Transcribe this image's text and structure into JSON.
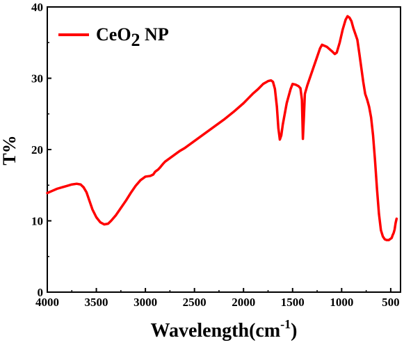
{
  "chart_data": {
    "type": "line",
    "title": "",
    "xlabel": {
      "main": "Wavelength(cm",
      "sup": "-1",
      "close": ")"
    },
    "ylabel": "T%",
    "xlim": [
      4000,
      400
    ],
    "ylim": [
      0,
      40
    ],
    "x_reversed": true,
    "x_ticks": [
      4000,
      3500,
      3000,
      2500,
      2000,
      1500,
      1000,
      500
    ],
    "y_ticks": [
      0,
      10,
      20,
      30,
      40
    ],
    "x_tick_labels": [
      "4000",
      "3500",
      "3000",
      "2500",
      "2000",
      "1500",
      "1000",
      "500"
    ],
    "y_tick_labels": [
      "0",
      "10",
      "20",
      "30",
      "40"
    ],
    "grid": false,
    "legend_position": "top-left",
    "legend": {
      "base": "CeO",
      "sub": "2",
      "suffix": " NP"
    },
    "series": [
      {
        "color": "#ff0000",
        "points": [
          [
            4000,
            13.9
          ],
          [
            3950,
            14.2
          ],
          [
            3900,
            14.5
          ],
          [
            3850,
            14.7
          ],
          [
            3800,
            14.9
          ],
          [
            3750,
            15.1
          ],
          [
            3700,
            15.2
          ],
          [
            3660,
            15.1
          ],
          [
            3630,
            14.7
          ],
          [
            3600,
            14.0
          ],
          [
            3570,
            12.8
          ],
          [
            3540,
            11.6
          ],
          [
            3500,
            10.5
          ],
          [
            3460,
            9.8
          ],
          [
            3420,
            9.5
          ],
          [
            3380,
            9.6
          ],
          [
            3350,
            10.0
          ],
          [
            3300,
            10.8
          ],
          [
            3250,
            11.8
          ],
          [
            3200,
            12.8
          ],
          [
            3150,
            13.9
          ],
          [
            3100,
            14.9
          ],
          [
            3050,
            15.7
          ],
          [
            3000,
            16.2
          ],
          [
            2950,
            16.3
          ],
          [
            2920,
            16.5
          ],
          [
            2900,
            16.9
          ],
          [
            2870,
            17.2
          ],
          [
            2850,
            17.5
          ],
          [
            2820,
            18.0
          ],
          [
            2800,
            18.3
          ],
          [
            2750,
            18.8
          ],
          [
            2700,
            19.3
          ],
          [
            2650,
            19.8
          ],
          [
            2600,
            20.2
          ],
          [
            2550,
            20.7
          ],
          [
            2500,
            21.2
          ],
          [
            2400,
            22.2
          ],
          [
            2300,
            23.2
          ],
          [
            2200,
            24.2
          ],
          [
            2100,
            25.3
          ],
          [
            2000,
            26.5
          ],
          [
            1950,
            27.2
          ],
          [
            1900,
            27.9
          ],
          [
            1850,
            28.5
          ],
          [
            1800,
            29.2
          ],
          [
            1750,
            29.6
          ],
          [
            1720,
            29.7
          ],
          [
            1700,
            29.5
          ],
          [
            1680,
            28.5
          ],
          [
            1660,
            26.0
          ],
          [
            1645,
            23.0
          ],
          [
            1630,
            21.4
          ],
          [
            1615,
            22.0
          ],
          [
            1600,
            23.5
          ],
          [
            1580,
            25.0
          ],
          [
            1560,
            26.5
          ],
          [
            1540,
            27.5
          ],
          [
            1520,
            28.5
          ],
          [
            1500,
            29.2
          ],
          [
            1470,
            29.1
          ],
          [
            1440,
            28.9
          ],
          [
            1420,
            28.6
          ],
          [
            1405,
            27.0
          ],
          [
            1395,
            21.5
          ],
          [
            1385,
            24.5
          ],
          [
            1375,
            27.8
          ],
          [
            1350,
            29.0
          ],
          [
            1300,
            31.0
          ],
          [
            1250,
            33.0
          ],
          [
            1220,
            34.2
          ],
          [
            1200,
            34.7
          ],
          [
            1150,
            34.4
          ],
          [
            1100,
            33.8
          ],
          [
            1070,
            33.4
          ],
          [
            1050,
            33.6
          ],
          [
            1020,
            35.0
          ],
          [
            990,
            36.8
          ],
          [
            960,
            38.2
          ],
          [
            940,
            38.7
          ],
          [
            920,
            38.5
          ],
          [
            900,
            38.0
          ],
          [
            880,
            37.0
          ],
          [
            860,
            36.2
          ],
          [
            840,
            35.4
          ],
          [
            820,
            33.5
          ],
          [
            800,
            31.5
          ],
          [
            780,
            29.5
          ],
          [
            760,
            27.8
          ],
          [
            740,
            27.0
          ],
          [
            720,
            26.0
          ],
          [
            700,
            24.5
          ],
          [
            680,
            22.0
          ],
          [
            660,
            18.5
          ],
          [
            640,
            14.5
          ],
          [
            620,
            11.0
          ],
          [
            600,
            8.7
          ],
          [
            580,
            7.8
          ],
          [
            560,
            7.4
          ],
          [
            540,
            7.3
          ],
          [
            520,
            7.3
          ],
          [
            500,
            7.5
          ],
          [
            490,
            7.6
          ],
          [
            480,
            8.0
          ],
          [
            470,
            8.3
          ],
          [
            460,
            8.8
          ],
          [
            450,
            9.7
          ],
          [
            440,
            10.3
          ]
        ]
      }
    ]
  }
}
